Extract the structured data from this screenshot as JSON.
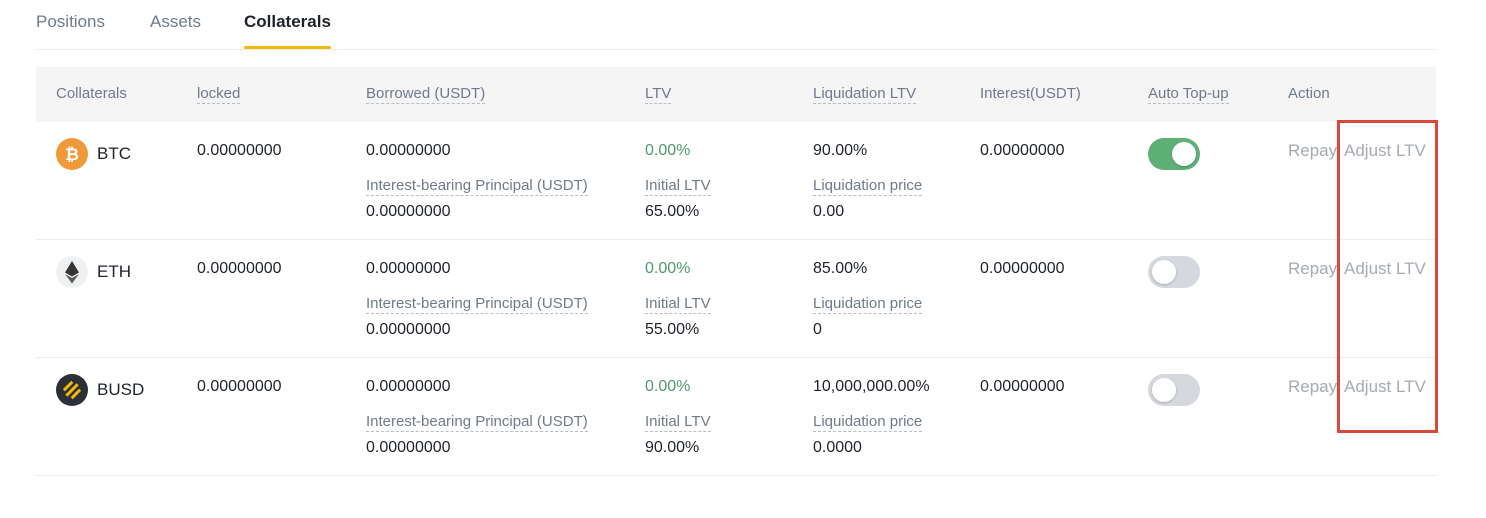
{
  "tabs": [
    {
      "label": "Positions",
      "active": false
    },
    {
      "label": "Assets",
      "active": false
    },
    {
      "label": "Collaterals",
      "active": true
    }
  ],
  "table": {
    "headers": {
      "collaterals": "Collaterals",
      "locked": "locked",
      "borrowed": "Borrowed (USDT)",
      "ltv": "LTV",
      "liquidation_ltv": "Liquidation LTV",
      "interest": "Interest(USDT)",
      "auto_topup": "Auto Top-up",
      "action": "Action"
    },
    "rows": [
      {
        "coin": "BTC",
        "icon": "btc-icon",
        "locked": "0.00000000",
        "borrowed": "0.00000000",
        "principal_label": "Interest-bearing Principal (USDT)",
        "principal": "0.00000000",
        "ltv": "0.00%",
        "initial_ltv_label": "Initial LTV",
        "initial_ltv": "65.00%",
        "liquidation_ltv": "90.00%",
        "liquidation_price_label": "Liquidation price",
        "liquidation_price": "0.00",
        "interest": "0.00000000",
        "auto_topup": true,
        "repay": "Repay",
        "adjust": "Adjust LTV"
      },
      {
        "coin": "ETH",
        "icon": "eth-icon",
        "locked": "0.00000000",
        "borrowed": "0.00000000",
        "principal_label": "Interest-bearing Principal (USDT)",
        "principal": "0.00000000",
        "ltv": "0.00%",
        "initial_ltv_label": "Initial LTV",
        "initial_ltv": "55.00%",
        "liquidation_ltv": "85.00%",
        "liquidation_price_label": "Liquidation price",
        "liquidation_price": "0",
        "interest": "0.00000000",
        "auto_topup": false,
        "repay": "Repay",
        "adjust": "Adjust LTV"
      },
      {
        "coin": "BUSD",
        "icon": "busd-icon",
        "locked": "0.00000000",
        "borrowed": "0.00000000",
        "principal_label": "Interest-bearing Principal (USDT)",
        "principal": "0.00000000",
        "ltv": "0.00%",
        "initial_ltv_label": "Initial LTV",
        "initial_ltv": "90.00%",
        "liquidation_ltv": "10,000,000.00%",
        "liquidation_price_label": "Liquidation price",
        "liquidation_price": "0.0000",
        "interest": "0.00000000",
        "auto_topup": false,
        "repay": "Repay",
        "adjust": "Adjust LTV"
      }
    ]
  },
  "colors": {
    "accent": "#f0b90b",
    "positive": "#4e9a66",
    "toggle_on": "#5fb077",
    "highlight": "#d9493a"
  }
}
